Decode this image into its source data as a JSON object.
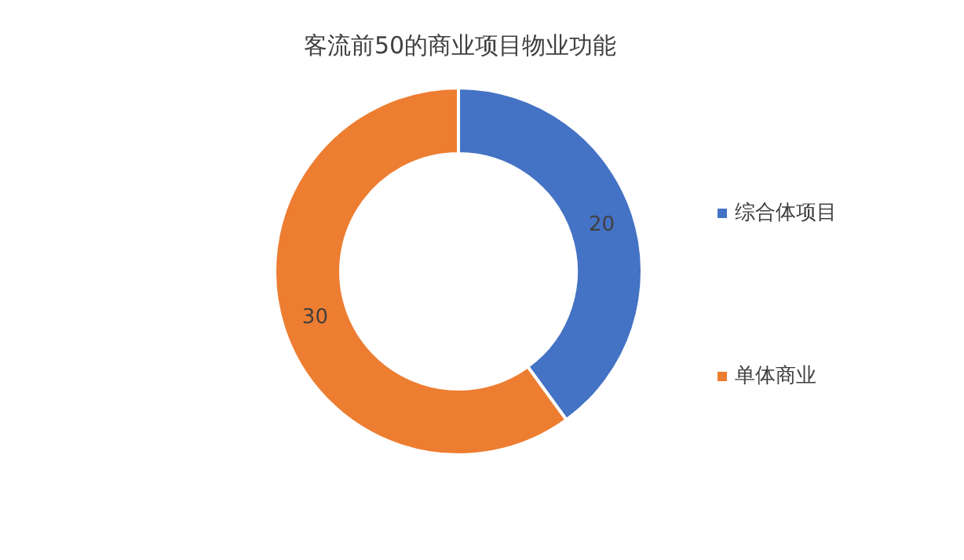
{
  "chart_data": {
    "type": "donut",
    "title": "客流前50的商业项目物业功能",
    "categories": [
      "综合体项目",
      "单体商业"
    ],
    "values": [
      20,
      30
    ],
    "colors": [
      "#4472c4",
      "#ed7d31"
    ],
    "data_labels": true,
    "legend": "right"
  }
}
